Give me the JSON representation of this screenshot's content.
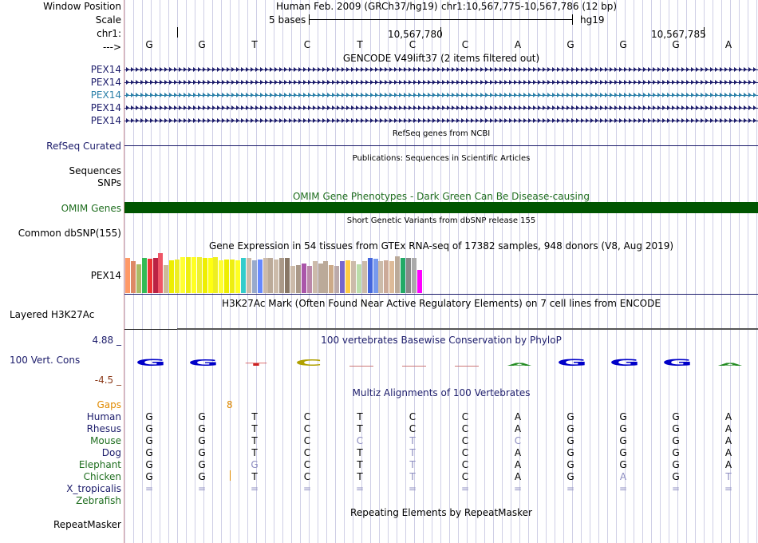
{
  "labels": {
    "window_position": "Window Position",
    "scale": "Scale",
    "chr": "chr1:",
    "strand": "--->",
    "gencode_tracks": [
      "PEX14",
      "PEX14",
      "PEX14",
      "PEX14",
      "PEX14"
    ],
    "refseq": "RefSeq Curated",
    "sequences": "Sequences",
    "snps": "SNPs",
    "omim": "OMIM Genes",
    "dbsnp": "Common dbSNP(155)",
    "gtex_gene": "PEX14",
    "h3k27ac": "Layered H3K27Ac",
    "cons_max": "4.88 _",
    "cons": "100 Vert. Cons",
    "cons_min": "-4.5 _",
    "gaps": "Gaps",
    "species": [
      "Human",
      "Rhesus",
      "Mouse",
      "Dog",
      "Elephant",
      "Chicken",
      "X_tropicalis",
      "Zebrafish"
    ],
    "repeatmasker": "RepeatMasker"
  },
  "header": {
    "assembly": "Human Feb. 2009 (GRCh37/hg19)",
    "position": "chr1:10,567,775-10,567,786 (12 bp)",
    "scale_label": "5 bases",
    "db": "hg19",
    "coord1": "10,567,780",
    "coord2": "10,567,785"
  },
  "bases": [
    "G",
    "G",
    "T",
    "C",
    "T",
    "C",
    "C",
    "A",
    "G",
    "G",
    "G",
    "A"
  ],
  "titles": {
    "gencode": "GENCODE V49lift37 (2 items filtered out)",
    "refseq": "RefSeq genes from NCBI",
    "pubs": "Publications: Sequences in Scientific Articles",
    "omim": "OMIM Gene Phenotypes - Dark Green Can Be Disease-causing",
    "dbsnp": "Short Genetic Variants from dbSNP release 155",
    "gtex": "Gene Expression in 54 tissues from GTEx RNA-seq of 17382 samples, 948 donors (V8, Aug 2019)",
    "h3k27ac": "H3K27Ac Mark (Often Found Near Active Regulatory Elements) on 7 cell lines from ENCODE",
    "phylop": "100 vertebrates Basewise Conservation by PhyloP",
    "multiz": "Multiz Alignments of 100 Vertebrates",
    "repeatmasker": "Repeating Elements by RepeatMasker"
  },
  "gaps_value": "8",
  "alignment": [
    [
      "G",
      "G",
      "T",
      "C",
      "T",
      "C",
      "C",
      "A",
      "G",
      "G",
      "G",
      "A"
    ],
    [
      "G",
      "G",
      "T",
      "C",
      "T",
      "C",
      "C",
      "A",
      "G",
      "G",
      "G",
      "A"
    ],
    [
      "G",
      "G",
      "T",
      "C",
      "C",
      "T",
      "C",
      "C",
      "G",
      "G",
      "G",
      "A"
    ],
    [
      "G",
      "G",
      "T",
      "C",
      "T",
      "T",
      "C",
      "A",
      "G",
      "G",
      "G",
      "A"
    ],
    [
      "G",
      "G",
      "G",
      "C",
      "T",
      "T",
      "C",
      "A",
      "G",
      "G",
      "G",
      "A"
    ],
    [
      "G",
      "G",
      "T",
      "C",
      "T",
      "T",
      "C",
      "A",
      "G",
      "A",
      "G",
      "T"
    ],
    [
      "=",
      "=",
      "=",
      "=",
      "=",
      "=",
      "=",
      "=",
      "=",
      "=",
      "=",
      "="
    ]
  ],
  "colors": {
    "omim": "#005500",
    "pex14_highlight": "#2a7fa8",
    "navy": "#1c1c6b",
    "phylop_blue": "#0000c8"
  },
  "gtex_levels": [
    0.84,
    0.76,
    0.7,
    0.84,
    0.82,
    0.84,
    0.96,
    0.68,
    0.78,
    0.8,
    0.86,
    0.86,
    0.86,
    0.86,
    0.84,
    0.84,
    0.86,
    0.78,
    0.8,
    0.8,
    0.78,
    0.84,
    0.84,
    0.78,
    0.8,
    0.84,
    0.84,
    0.8,
    0.84,
    0.84,
    0.66,
    0.68,
    0.72,
    0.66,
    0.76,
    0.72,
    0.76,
    0.68,
    0.66,
    0.76,
    0.78,
    0.76,
    0.7,
    0.76,
    0.84,
    0.82,
    0.76,
    0.78,
    0.76,
    0.88,
    0.84,
    0.84,
    0.84,
    0.56
  ],
  "gtex_colors": [
    "#ff9966",
    "#dd8866",
    "#aabb66",
    "#33bb55",
    "#ee3333",
    "#bb2244",
    "#ee5566",
    "#ccbb99",
    "#eeee00",
    "#eeee22",
    "#ffff33",
    "#eeee11",
    "#ffff22",
    "#eeee33",
    "#eeee00",
    "#ffff11",
    "#eeee22",
    "#ffff33",
    "#eeee00",
    "#eeee11",
    "#ffff22",
    "#33cccc",
    "#ccbbaa",
    "#99aacc",
    "#6688ff",
    "#ccbbaa",
    "#bbaa99",
    "#ccbbaa",
    "#aa9988",
    "#887766",
    "#ccbbaa",
    "#aa9988",
    "#aa55aa",
    "#bb88aa",
    "#ccbbaa",
    "#bbaa99",
    "#bbaa99",
    "#ccaa88",
    "#bbaaaa",
    "#7766cc",
    "#ffcc44",
    "#ccbbaa",
    "#bbddaa",
    "#ccbbaa",
    "#4466dd",
    "#7799ee",
    "#ccbbaa",
    "#ccaa99",
    "#ddbb99",
    "#bbaa99",
    "#22aa66",
    "#888888",
    "#aaaaaa",
    "#ff00ff"
  ],
  "phylop_scores": [
    1.0,
    0.9,
    0.25,
    0.9,
    0.0,
    0.0,
    0.0,
    0.15,
    1.0,
    1.0,
    1.0,
    0.2
  ]
}
